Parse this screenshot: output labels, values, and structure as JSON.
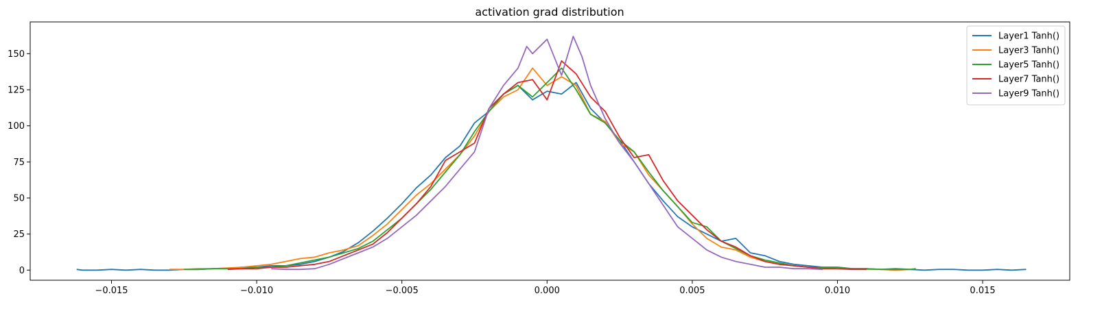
{
  "chart_data": {
    "type": "line",
    "title": "activation grad distribution",
    "xlabel": "",
    "ylabel": "",
    "xlim": [
      -0.0178,
      0.018
    ],
    "ylim": [
      -7,
      172
    ],
    "grid": false,
    "legend_position": "top-right",
    "x_ticks": [
      -0.015,
      -0.01,
      -0.005,
      0.0,
      0.005,
      0.01,
      0.015
    ],
    "x_tick_labels": [
      "−0.015",
      "−0.010",
      "−0.005",
      "0.000",
      "0.005",
      "0.010",
      "0.015"
    ],
    "y_ticks": [
      0,
      25,
      50,
      75,
      100,
      125,
      150
    ],
    "y_tick_labels": [
      "0",
      "25",
      "50",
      "75",
      "100",
      "125",
      "150"
    ],
    "series": [
      {
        "name": "Layer1 Tanh()",
        "color": "#1f77b4",
        "x": [
          -0.0162,
          -0.016,
          -0.0155,
          -0.015,
          -0.0145,
          -0.014,
          -0.0135,
          -0.013,
          -0.0125,
          -0.012,
          -0.0115,
          -0.011,
          -0.0105,
          -0.01,
          -0.0095,
          -0.009,
          -0.0085,
          -0.008,
          -0.0075,
          -0.007,
          -0.0065,
          -0.006,
          -0.0055,
          -0.005,
          -0.0045,
          -0.004,
          -0.0035,
          -0.003,
          -0.0025,
          -0.002,
          -0.0015,
          -0.001,
          -0.0005,
          0.0,
          0.0005,
          0.001,
          0.0015,
          0.002,
          0.0025,
          0.003,
          0.0035,
          0.004,
          0.0045,
          0.005,
          0.0055,
          0.006,
          0.0065,
          0.007,
          0.0075,
          0.008,
          0.0085,
          0.009,
          0.0095,
          0.01,
          0.0105,
          0.011,
          0.0115,
          0.012,
          0.0125,
          0.013,
          0.0135,
          0.014,
          0.0145,
          0.015,
          0.0155,
          0.016,
          0.0165
        ],
        "y": [
          0.5,
          0,
          0,
          0.5,
          0,
          0.5,
          0,
          0,
          0.5,
          0.5,
          1,
          1,
          2,
          2,
          3,
          3,
          4,
          6,
          9,
          13,
          19,
          27,
          36,
          46,
          57,
          66,
          78,
          86,
          102,
          110,
          122,
          128,
          118,
          124,
          122,
          130,
          112,
          102,
          90,
          75,
          60,
          48,
          37,
          30,
          25,
          20,
          22,
          12,
          10,
          6,
          4,
          3,
          2,
          2,
          1,
          1,
          0.5,
          1,
          0.5,
          0,
          0.5,
          0.5,
          0,
          0,
          0.5,
          0,
          0.5
        ]
      },
      {
        "name": "Layer3 Tanh()",
        "color": "#ff7f0e",
        "x": [
          -0.013,
          -0.0125,
          -0.012,
          -0.0115,
          -0.011,
          -0.0105,
          -0.01,
          -0.0095,
          -0.009,
          -0.0085,
          -0.008,
          -0.0075,
          -0.007,
          -0.0065,
          -0.006,
          -0.0055,
          -0.005,
          -0.0045,
          -0.004,
          -0.0035,
          -0.003,
          -0.0025,
          -0.002,
          -0.0015,
          -0.001,
          -0.0005,
          0.0,
          0.0005,
          0.001,
          0.0015,
          0.002,
          0.0025,
          0.003,
          0.0035,
          0.004,
          0.0045,
          0.005,
          0.0055,
          0.006,
          0.0065,
          0.007,
          0.0075,
          0.008,
          0.0085,
          0.009,
          0.0095,
          0.01,
          0.0105,
          0.011,
          0.0115,
          0.012,
          0.0125
        ],
        "y": [
          0.5,
          0.5,
          1,
          1,
          1.5,
          2,
          3,
          4,
          6,
          8,
          9,
          12,
          14,
          17,
          24,
          32,
          42,
          52,
          60,
          70,
          80,
          93,
          110,
          120,
          125,
          140,
          128,
          134,
          128,
          108,
          103,
          88,
          82,
          66,
          55,
          44,
          32,
          22,
          16,
          14,
          9,
          6,
          4,
          3,
          2,
          1.5,
          1,
          1,
          0.5,
          0.5,
          0,
          0.5
        ]
      },
      {
        "name": "Layer5 Tanh()",
        "color": "#2ca02c",
        "x": [
          -0.0125,
          -0.012,
          -0.0115,
          -0.011,
          -0.0105,
          -0.01,
          -0.0095,
          -0.009,
          -0.0085,
          -0.008,
          -0.0075,
          -0.007,
          -0.0065,
          -0.006,
          -0.0055,
          -0.005,
          -0.0045,
          -0.004,
          -0.0035,
          -0.003,
          -0.0025,
          -0.002,
          -0.0015,
          -0.001,
          -0.0005,
          0.0,
          0.0005,
          0.001,
          0.0015,
          0.002,
          0.0025,
          0.003,
          0.0035,
          0.004,
          0.0045,
          0.005,
          0.0055,
          0.006,
          0.0065,
          0.007,
          0.0075,
          0.008,
          0.0085,
          0.009,
          0.0095,
          0.01,
          0.0105,
          0.011,
          0.0115,
          0.012,
          0.0125,
          0.0127
        ],
        "y": [
          0.5,
          0.5,
          1,
          1,
          1,
          2,
          2,
          3,
          5,
          7,
          9,
          12,
          15,
          20,
          28,
          36,
          46,
          56,
          68,
          80,
          96,
          110,
          122,
          128,
          120,
          130,
          140,
          125,
          108,
          102,
          90,
          82,
          68,
          55,
          44,
          33,
          30,
          20,
          15,
          10,
          7,
          5,
          3,
          2,
          2,
          2,
          1,
          1,
          0.5,
          0.5,
          0.5,
          1
        ]
      },
      {
        "name": "Layer7 Tanh()",
        "color": "#d62728",
        "x": [
          -0.011,
          -0.0105,
          -0.01,
          -0.0095,
          -0.009,
          -0.0085,
          -0.008,
          -0.0075,
          -0.007,
          -0.0065,
          -0.006,
          -0.0055,
          -0.005,
          -0.0045,
          -0.004,
          -0.0035,
          -0.003,
          -0.0025,
          -0.002,
          -0.0015,
          -0.001,
          -0.0005,
          0.0,
          0.0005,
          0.001,
          0.0015,
          0.002,
          0.0025,
          0.003,
          0.0035,
          0.004,
          0.0045,
          0.005,
          0.0055,
          0.006,
          0.0065,
          0.007,
          0.0075,
          0.008,
          0.0085,
          0.009,
          0.0095,
          0.01,
          0.0105,
          0.011
        ],
        "y": [
          0.5,
          1,
          1,
          2,
          2,
          3,
          4,
          6,
          10,
          14,
          18,
          26,
          36,
          46,
          58,
          76,
          82,
          88,
          112,
          122,
          130,
          132,
          118,
          145,
          136,
          120,
          110,
          92,
          78,
          80,
          62,
          48,
          38,
          28,
          20,
          16,
          10,
          6,
          4,
          3,
          2,
          1,
          1,
          0.5,
          0.5
        ]
      },
      {
        "name": "Layer9 Tanh()",
        "color": "#9467bd",
        "x": [
          -0.0095,
          -0.009,
          -0.0085,
          -0.008,
          -0.0075,
          -0.007,
          -0.0065,
          -0.006,
          -0.0055,
          -0.005,
          -0.0045,
          -0.004,
          -0.0035,
          -0.003,
          -0.0025,
          -0.002,
          -0.0015,
          -0.001,
          -0.0007,
          -0.0005,
          0.0,
          0.0005,
          0.0009,
          0.0012,
          0.0015,
          0.002,
          0.0025,
          0.003,
          0.0035,
          0.004,
          0.0045,
          0.005,
          0.0055,
          0.006,
          0.0065,
          0.007,
          0.0075,
          0.008,
          0.0085,
          0.009,
          0.0095
        ],
        "y": [
          1,
          0.5,
          0.5,
          1,
          4,
          8,
          12,
          16,
          22,
          30,
          38,
          48,
          58,
          70,
          82,
          112,
          128,
          140,
          155,
          150,
          160,
          135,
          162,
          148,
          128,
          105,
          88,
          75,
          60,
          45,
          30,
          22,
          14,
          9,
          6,
          4,
          2,
          2,
          1,
          1,
          0.5
        ]
      }
    ]
  }
}
